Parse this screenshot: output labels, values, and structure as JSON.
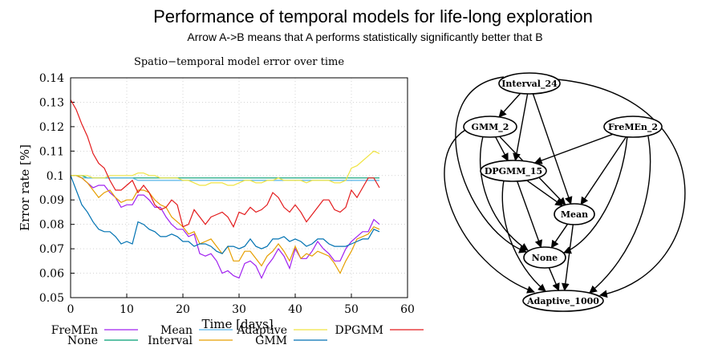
{
  "title": "Performance of temporal models for life-long exploration",
  "subtitle": "Arrow A->B means that A performs statistically significantly better that B",
  "chart_data": {
    "type": "line",
    "title": "Spatio−temporal model error over time",
    "xlabel": "Time [days]",
    "ylabel": "Error rate [%]",
    "xlim": [
      0,
      60
    ],
    "ylim": [
      0.05,
      0.14
    ],
    "xticks": [
      "0",
      "10",
      "20",
      "30",
      "40",
      "50",
      "60"
    ],
    "yticks": [
      "0.05",
      "0.06",
      "0.07",
      "0.08",
      "0.09",
      "0.1",
      "0.11",
      "0.12",
      "0.13",
      "0.14"
    ],
    "grid": true,
    "legend_position": "bottom",
    "x": [
      0,
      1,
      2,
      3,
      4,
      5,
      6,
      7,
      8,
      9,
      10,
      11,
      12,
      13,
      14,
      15,
      16,
      17,
      18,
      19,
      20,
      21,
      22,
      23,
      24,
      25,
      26,
      27,
      28,
      29,
      30,
      31,
      32,
      33,
      34,
      35,
      36,
      37,
      38,
      39,
      40,
      41,
      42,
      43,
      44,
      45,
      46,
      47,
      48,
      49,
      50,
      51,
      52,
      53,
      54,
      55
    ],
    "series": [
      {
        "name": "FreMEn",
        "color": "#a020f0",
        "values": [
          0.1,
          0.1,
          0.099,
          0.097,
          0.095,
          0.096,
          0.096,
          0.093,
          0.091,
          0.087,
          0.088,
          0.088,
          0.092,
          0.092,
          0.09,
          0.087,
          0.087,
          0.083,
          0.08,
          0.078,
          0.078,
          0.075,
          0.076,
          0.068,
          0.067,
          0.068,
          0.065,
          0.06,
          0.061,
          0.059,
          0.058,
          0.064,
          0.065,
          0.063,
          0.058,
          0.063,
          0.066,
          0.07,
          0.067,
          0.062,
          0.07,
          0.066,
          0.066,
          0.069,
          0.073,
          0.07,
          0.068,
          0.065,
          0.065,
          0.07,
          0.073,
          0.075,
          0.077,
          0.077,
          0.082,
          0.08
        ]
      },
      {
        "name": "None",
        "color": "#009e73",
        "values": [
          0.1,
          0.1,
          0.1,
          0.099,
          0.099,
          0.099,
          0.099,
          0.099,
          0.099,
          0.099,
          0.099,
          0.099,
          0.099,
          0.099,
          0.099,
          0.099,
          0.099,
          0.099,
          0.099,
          0.099,
          0.099,
          0.099,
          0.099,
          0.099,
          0.099,
          0.099,
          0.099,
          0.099,
          0.099,
          0.099,
          0.099,
          0.099,
          0.099,
          0.099,
          0.099,
          0.099,
          0.099,
          0.099,
          0.099,
          0.099,
          0.099,
          0.099,
          0.099,
          0.099,
          0.099,
          0.099,
          0.099,
          0.099,
          0.099,
          0.099,
          0.099,
          0.099,
          0.099,
          0.099,
          0.099,
          0.099
        ]
      },
      {
        "name": "Mean",
        "color": "#56b4e9",
        "values": [
          0.1,
          0.1,
          0.099,
          0.099,
          0.099,
          0.099,
          0.099,
          0.099,
          0.099,
          0.099,
          0.099,
          0.099,
          0.098,
          0.098,
          0.098,
          0.098,
          0.098,
          0.098,
          0.098,
          0.098,
          0.098,
          0.098,
          0.098,
          0.098,
          0.098,
          0.098,
          0.098,
          0.098,
          0.098,
          0.098,
          0.098,
          0.098,
          0.098,
          0.098,
          0.098,
          0.098,
          0.098,
          0.098,
          0.098,
          0.098,
          0.098,
          0.098,
          0.098,
          0.098,
          0.098,
          0.098,
          0.098,
          0.098,
          0.098,
          0.098,
          0.098,
          0.098,
          0.098,
          0.098,
          0.098,
          0.098
        ]
      },
      {
        "name": "Interval",
        "color": "#e69f00",
        "values": [
          0.1,
          0.1,
          0.099,
          0.097,
          0.094,
          0.091,
          0.093,
          0.094,
          0.091,
          0.089,
          0.09,
          0.09,
          0.094,
          0.094,
          0.093,
          0.09,
          0.088,
          0.087,
          0.083,
          0.081,
          0.079,
          0.076,
          0.077,
          0.072,
          0.073,
          0.074,
          0.071,
          0.068,
          0.071,
          0.065,
          0.065,
          0.069,
          0.069,
          0.066,
          0.063,
          0.067,
          0.069,
          0.072,
          0.069,
          0.065,
          0.071,
          0.066,
          0.068,
          0.067,
          0.069,
          0.068,
          0.067,
          0.064,
          0.06,
          0.065,
          0.069,
          0.074,
          0.075,
          0.076,
          0.079,
          0.078
        ]
      },
      {
        "name": "Adaptive",
        "color": "#f0e442",
        "values": [
          0.1,
          0.1,
          0.1,
          0.1,
          0.099,
          0.099,
          0.099,
          0.1,
          0.1,
          0.1,
          0.1,
          0.1,
          0.101,
          0.101,
          0.1,
          0.1,
          0.099,
          0.099,
          0.099,
          0.099,
          0.098,
          0.098,
          0.097,
          0.096,
          0.096,
          0.097,
          0.097,
          0.097,
          0.096,
          0.096,
          0.097,
          0.098,
          0.098,
          0.097,
          0.097,
          0.098,
          0.098,
          0.099,
          0.098,
          0.098,
          0.098,
          0.098,
          0.097,
          0.098,
          0.098,
          0.098,
          0.098,
          0.097,
          0.097,
          0.098,
          0.103,
          0.104,
          0.106,
          0.108,
          0.11,
          0.109
        ]
      },
      {
        "name": "GMM",
        "color": "#0072b2",
        "values": [
          0.1,
          0.094,
          0.088,
          0.085,
          0.081,
          0.078,
          0.077,
          0.077,
          0.075,
          0.072,
          0.073,
          0.072,
          0.081,
          0.08,
          0.078,
          0.077,
          0.075,
          0.075,
          0.076,
          0.075,
          0.073,
          0.073,
          0.071,
          0.072,
          0.072,
          0.071,
          0.069,
          0.068,
          0.071,
          0.071,
          0.07,
          0.071,
          0.074,
          0.071,
          0.07,
          0.071,
          0.074,
          0.074,
          0.075,
          0.073,
          0.074,
          0.073,
          0.071,
          0.072,
          0.074,
          0.074,
          0.072,
          0.071,
          0.071,
          0.071,
          0.072,
          0.073,
          0.074,
          0.074,
          0.078,
          0.077
        ]
      },
      {
        "name": "DPGMM",
        "color": "#e31a1c",
        "values": [
          0.131,
          0.127,
          0.121,
          0.116,
          0.109,
          0.105,
          0.103,
          0.098,
          0.094,
          0.094,
          0.096,
          0.098,
          0.093,
          0.096,
          0.093,
          0.088,
          0.086,
          0.087,
          0.09,
          0.088,
          0.079,
          0.08,
          0.086,
          0.083,
          0.08,
          0.083,
          0.084,
          0.085,
          0.083,
          0.079,
          0.085,
          0.084,
          0.087,
          0.085,
          0.086,
          0.088,
          0.093,
          0.091,
          0.087,
          0.085,
          0.088,
          0.085,
          0.081,
          0.084,
          0.087,
          0.09,
          0.09,
          0.086,
          0.085,
          0.087,
          0.094,
          0.091,
          0.095,
          0.099,
          0.099,
          0.095
        ]
      }
    ],
    "legend_order": [
      "FreMEn",
      "None",
      "Mean",
      "Interval",
      "Adaptive",
      "GMM",
      "DPGMM"
    ]
  },
  "graph": {
    "nodes": [
      {
        "id": "Interval_24",
        "label": "Interval_24"
      },
      {
        "id": "GMM_2",
        "label": "GMM_2"
      },
      {
        "id": "FreMEn_2",
        "label": "FreMEn_2"
      },
      {
        "id": "DPGMM_15",
        "label": "DPGMM_15"
      },
      {
        "id": "Mean",
        "label": "Mean"
      },
      {
        "id": "None",
        "label": "None"
      },
      {
        "id": "Adaptive_1000",
        "label": "Adaptive_1000"
      }
    ],
    "edges": [
      [
        "Interval_24",
        "GMM_2"
      ],
      [
        "Interval_24",
        "DPGMM_15"
      ],
      [
        "Interval_24",
        "Mean"
      ],
      [
        "Interval_24",
        "None"
      ],
      [
        "Interval_24",
        "Adaptive_1000"
      ],
      [
        "GMM_2",
        "DPGMM_15"
      ],
      [
        "GMM_2",
        "Mean"
      ],
      [
        "GMM_2",
        "None"
      ],
      [
        "GMM_2",
        "Adaptive_1000"
      ],
      [
        "FreMEn_2",
        "DPGMM_15"
      ],
      [
        "FreMEn_2",
        "Mean"
      ],
      [
        "FreMEn_2",
        "None"
      ],
      [
        "FreMEn_2",
        "Adaptive_1000"
      ],
      [
        "DPGMM_15",
        "Mean"
      ],
      [
        "DPGMM_15",
        "None"
      ],
      [
        "DPGMM_15",
        "Adaptive_1000"
      ],
      [
        "Mean",
        "None"
      ],
      [
        "Mean",
        "Adaptive_1000"
      ],
      [
        "None",
        "Adaptive_1000"
      ]
    ]
  }
}
